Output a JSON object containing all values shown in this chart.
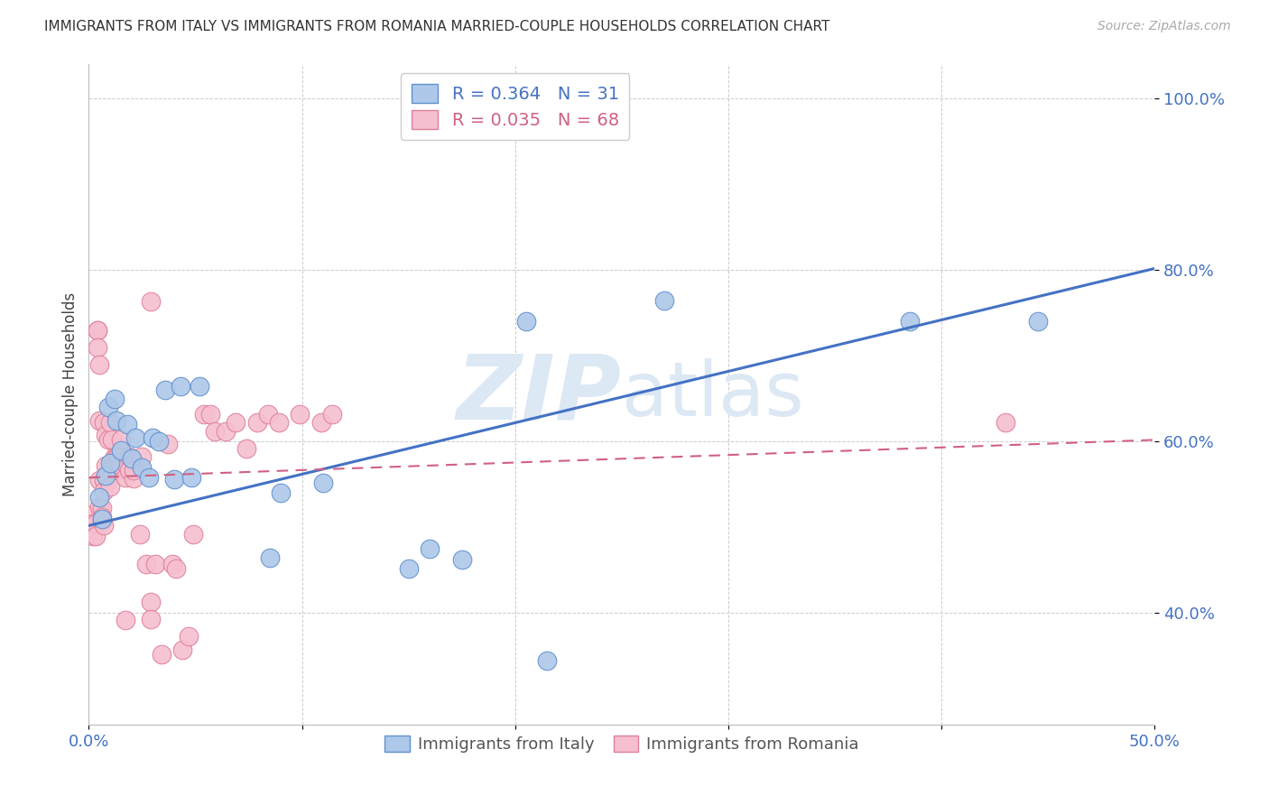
{
  "title": "IMMIGRANTS FROM ITALY VS IMMIGRANTS FROM ROMANIA MARRIED-COUPLE HOUSEHOLDS CORRELATION CHART",
  "source": "Source: ZipAtlas.com",
  "ylabel": "Married-couple Households",
  "xlim": [
    0.0,
    0.5
  ],
  "ylim": [
    0.27,
    1.04
  ],
  "xticks": [
    0.0,
    0.1,
    0.2,
    0.3,
    0.4,
    0.5
  ],
  "xticklabels": [
    "0.0%",
    "",
    "",
    "",
    "",
    "50.0%"
  ],
  "yticks": [
    0.4,
    0.6,
    0.8,
    1.0
  ],
  "yticklabels": [
    "40.0%",
    "60.0%",
    "80.0%",
    "100.0%"
  ],
  "italy_R": 0.364,
  "italy_N": 31,
  "romania_R": 0.035,
  "romania_N": 68,
  "italy_color": "#adc8e8",
  "italy_edge_color": "#6090d0",
  "italy_line_color": "#4472c4",
  "romania_color": "#f5bfcf",
  "romania_edge_color": "#e08098",
  "romania_line_color": "#d06080",
  "background_color": "#ffffff",
  "grid_color": "#cccccc",
  "watermark_color": "#dce8f4",
  "italy_x": [
    0.005,
    0.006,
    0.008,
    0.009,
    0.01,
    0.012,
    0.013,
    0.015,
    0.018,
    0.02,
    0.022,
    0.025,
    0.028,
    0.03,
    0.033,
    0.036,
    0.04,
    0.043,
    0.048,
    0.052,
    0.085,
    0.09,
    0.11,
    0.15,
    0.16,
    0.175,
    0.205,
    0.215,
    0.27,
    0.385,
    0.445
  ],
  "italy_y": [
    0.535,
    0.51,
    0.56,
    0.64,
    0.575,
    0.65,
    0.625,
    0.59,
    0.62,
    0.58,
    0.605,
    0.57,
    0.558,
    0.605,
    0.6,
    0.66,
    0.556,
    0.665,
    0.558,
    0.665,
    0.465,
    0.54,
    0.552,
    0.452,
    0.475,
    0.462,
    0.74,
    0.345,
    0.765,
    0.74,
    0.74
  ],
  "romania_x": [
    0.002,
    0.002,
    0.002,
    0.003,
    0.003,
    0.004,
    0.004,
    0.004,
    0.005,
    0.005,
    0.005,
    0.005,
    0.006,
    0.006,
    0.006,
    0.007,
    0.007,
    0.007,
    0.007,
    0.008,
    0.008,
    0.009,
    0.009,
    0.01,
    0.01,
    0.011,
    0.011,
    0.012,
    0.012,
    0.013,
    0.014,
    0.014,
    0.015,
    0.015,
    0.017,
    0.017,
    0.018,
    0.019,
    0.019,
    0.021,
    0.021,
    0.024,
    0.025,
    0.027,
    0.029,
    0.029,
    0.029,
    0.031,
    0.034,
    0.037,
    0.039,
    0.041,
    0.044,
    0.047,
    0.049,
    0.054,
    0.057,
    0.059,
    0.064,
    0.069,
    0.074,
    0.079,
    0.084,
    0.089,
    0.099,
    0.109,
    0.114,
    0.43
  ],
  "romania_y": [
    0.515,
    0.505,
    0.49,
    0.505,
    0.49,
    0.73,
    0.73,
    0.71,
    0.525,
    0.69,
    0.625,
    0.555,
    0.508,
    0.522,
    0.512,
    0.502,
    0.555,
    0.622,
    0.542,
    0.608,
    0.572,
    0.602,
    0.555,
    0.622,
    0.548,
    0.572,
    0.602,
    0.572,
    0.582,
    0.582,
    0.582,
    0.567,
    0.602,
    0.572,
    0.558,
    0.392,
    0.572,
    0.582,
    0.567,
    0.557,
    0.567,
    0.492,
    0.582,
    0.457,
    0.413,
    0.393,
    0.763,
    0.457,
    0.352,
    0.597,
    0.457,
    0.452,
    0.357,
    0.373,
    0.492,
    0.632,
    0.632,
    0.612,
    0.612,
    0.622,
    0.592,
    0.622,
    0.632,
    0.622,
    0.632,
    0.622,
    0.632,
    0.622
  ],
  "italy_trend_x0": 0.0,
  "italy_trend_y0": 0.502,
  "italy_trend_x1": 0.5,
  "italy_trend_y1": 0.802,
  "romania_trend_x0": 0.0,
  "romania_trend_y0": 0.558,
  "romania_trend_x1": 0.5,
  "romania_trend_y1": 0.602
}
